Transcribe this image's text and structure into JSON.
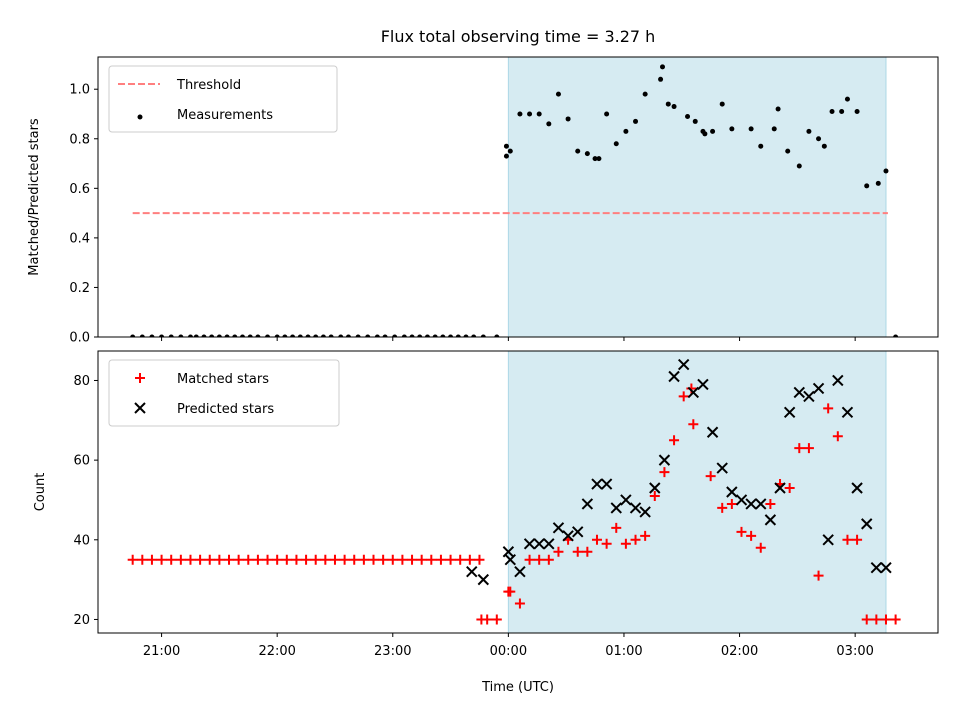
{
  "chart_data": [
    {
      "type": "scatter",
      "title": "Flux total observing time = 3.27 h",
      "xlabel": "",
      "ylabel": "Matched/Predicted stars",
      "xlim": [
        "20:27",
        "03:43"
      ],
      "ylim": [
        0,
        1.13
      ],
      "yticks": [
        "0.0",
        "0.2",
        "0.4",
        "0.6",
        "0.8",
        "1.0"
      ],
      "shaded_interval": {
        "x": [
          "00:00",
          "03:16"
        ],
        "color": "#add8e6"
      },
      "legend_position": "top-left",
      "series": [
        {
          "name": "Threshold",
          "style": "dashed-line",
          "color": "#ff7f7f",
          "x": [
            "20:45",
            "03:17"
          ],
          "y": [
            0.5,
            0.5
          ]
        },
        {
          "name": "Measurements",
          "style": "dot",
          "color": "#000000",
          "x": [
            "20:45",
            "20:50",
            "20:55",
            "21:00",
            "21:05",
            "21:10",
            "21:15",
            "21:18",
            "21:22",
            "21:26",
            "21:30",
            "21:34",
            "21:38",
            "21:42",
            "21:46",
            "21:50",
            "21:55",
            "22:00",
            "22:04",
            "22:08",
            "22:12",
            "22:16",
            "22:20",
            "22:24",
            "22:28",
            "22:33",
            "22:37",
            "22:42",
            "22:47",
            "22:52",
            "22:56",
            "23:01",
            "23:06",
            "23:10",
            "23:14",
            "23:18",
            "23:22",
            "23:26",
            "23:30",
            "23:34",
            "23:38",
            "23:42",
            "23:47",
            "23:54",
            "23:59",
            "23:59",
            "00:01",
            "00:06",
            "00:11",
            "00:16",
            "00:21",
            "00:26",
            "00:31",
            "00:36",
            "00:41",
            "00:45",
            "00:47",
            "00:51",
            "00:56",
            "01:01",
            "01:06",
            "01:11",
            "01:19",
            "01:20",
            "01:23",
            "01:26",
            "01:33",
            "01:37",
            "01:41",
            "01:42",
            "01:46",
            "01:51",
            "01:56",
            "02:06",
            "02:11",
            "02:18",
            "02:20",
            "02:25",
            "02:31",
            "02:36",
            "02:41",
            "02:44",
            "02:48",
            "02:53",
            "02:56",
            "03:01",
            "03:06",
            "03:12",
            "03:16",
            "03:21"
          ],
          "y": [
            0,
            0,
            0,
            0,
            0,
            0,
            0,
            0,
            0,
            0,
            0,
            0,
            0,
            0,
            0,
            0,
            0,
            0,
            0,
            0,
            0,
            0,
            0,
            0,
            0,
            0,
            0,
            0,
            0,
            0,
            0,
            0,
            0,
            0,
            0,
            0,
            0,
            0,
            0,
            0,
            0,
            0,
            0,
            0,
            0.73,
            0.77,
            0.75,
            0.9,
            0.9,
            0.9,
            0.86,
            0.98,
            0.88,
            0.75,
            0.74,
            0.72,
            0.72,
            0.9,
            0.78,
            0.83,
            0.87,
            0.98,
            1.04,
            1.09,
            0.94,
            0.93,
            0.89,
            0.87,
            0.83,
            0.82,
            0.83,
            0.94,
            0.84,
            0.84,
            0.77,
            0.84,
            0.92,
            0.75,
            0.69,
            0.83,
            0.8,
            0.77,
            0.91,
            0.91,
            0.96,
            0.91,
            0.61,
            0.62,
            0.67,
            0
          ]
        }
      ]
    },
    {
      "type": "scatter",
      "title": "",
      "xlabel": "Time (UTC)",
      "ylabel": "Count",
      "xlim": [
        "20:27",
        "03:43"
      ],
      "ylim": [
        16.6,
        87.4
      ],
      "yticks": [
        "20",
        "40",
        "60",
        "80"
      ],
      "xticks": [
        "21:00",
        "22:00",
        "23:00",
        "00:00",
        "01:00",
        "02:00",
        "03:00"
      ],
      "shaded_interval": {
        "x": [
          "00:00",
          "03:16"
        ],
        "color": "#add8e6"
      },
      "legend_position": "top-left",
      "series": [
        {
          "name": "Matched stars",
          "style": "plus",
          "color": "#ff0000",
          "x": [
            "20:45",
            "20:50",
            "20:55",
            "21:00",
            "21:05",
            "21:10",
            "21:15",
            "21:20",
            "21:25",
            "21:30",
            "21:35",
            "21:40",
            "21:45",
            "21:50",
            "21:55",
            "22:00",
            "22:05",
            "22:10",
            "22:15",
            "22:20",
            "22:25",
            "22:30",
            "22:35",
            "22:40",
            "22:45",
            "22:50",
            "22:55",
            "23:00",
            "23:05",
            "23:10",
            "23:15",
            "23:20",
            "23:25",
            "23:30",
            "23:35",
            "23:40",
            "23:45",
            "23:46",
            "23:49",
            "23:54",
            "00:00",
            "00:01",
            "00:06",
            "00:11",
            "00:16",
            "00:21",
            "00:26",
            "00:31",
            "00:36",
            "00:41",
            "00:46",
            "00:51",
            "00:56",
            "01:01",
            "01:06",
            "01:11",
            "01:16",
            "01:21",
            "01:26",
            "01:31",
            "01:35",
            "01:36",
            "01:45",
            "01:51",
            "01:56",
            "02:01",
            "02:06",
            "02:11",
            "02:16",
            "02:21",
            "02:26",
            "02:31",
            "02:36",
            "02:41",
            "02:46",
            "02:51",
            "02:56",
            "03:01",
            "03:06",
            "03:11",
            "03:16",
            "03:21"
          ],
          "y": [
            35,
            35,
            35,
            35,
            35,
            35,
            35,
            35,
            35,
            35,
            35,
            35,
            35,
            35,
            35,
            35,
            35,
            35,
            35,
            35,
            35,
            35,
            35,
            35,
            35,
            35,
            35,
            35,
            35,
            35,
            35,
            35,
            35,
            35,
            35,
            35,
            35,
            20,
            20,
            20,
            27,
            27,
            24,
            35,
            35,
            35,
            37,
            40,
            37,
            37,
            40,
            39,
            43,
            39,
            40,
            41,
            51,
            57,
            65,
            76,
            78,
            69,
            56,
            48,
            49,
            42,
            41,
            38,
            49,
            54,
            53,
            63,
            63,
            31,
            73,
            66,
            40,
            40,
            20,
            20,
            20,
            20
          ]
        },
        {
          "name": "Predicted stars",
          "style": "cross",
          "color": "#000000",
          "x": [
            "23:41",
            "23:47",
            "00:00",
            "00:01",
            "00:06",
            "00:11",
            "00:16",
            "00:21",
            "00:26",
            "00:31",
            "00:36",
            "00:41",
            "00:46",
            "00:51",
            "00:56",
            "01:01",
            "01:06",
            "01:11",
            "01:16",
            "01:21",
            "01:26",
            "01:31",
            "01:36",
            "01:41",
            "01:46",
            "01:51",
            "01:56",
            "02:01",
            "02:06",
            "02:11",
            "02:16",
            "02:21",
            "02:26",
            "02:31",
            "02:36",
            "02:41",
            "02:46",
            "02:51",
            "02:56",
            "03:01",
            "03:06",
            "03:11",
            "03:16"
          ],
          "y": [
            32,
            30,
            37,
            35,
            32,
            39,
            39,
            39,
            43,
            41,
            42,
            49,
            54,
            54,
            48,
            50,
            48,
            47,
            53,
            60,
            81,
            84,
            77,
            79,
            67,
            58,
            52,
            50,
            49,
            49,
            45,
            53,
            72,
            77,
            76,
            78,
            40,
            80,
            72,
            53,
            44,
            33,
            33
          ]
        }
      ]
    }
  ]
}
